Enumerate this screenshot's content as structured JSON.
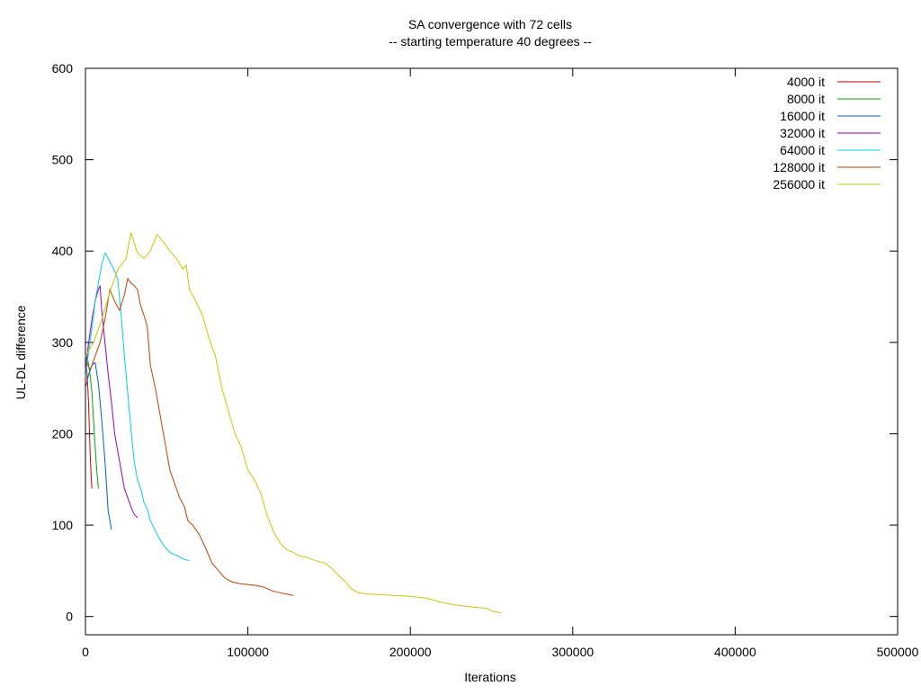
{
  "chart_data": {
    "type": "line",
    "title": "SA convergence with 72 cells",
    "subtitle": "-- starting temperature 40 degrees --",
    "xlabel": "Iterations",
    "ylabel": "UL-DL difference",
    "xlim": [
      0,
      500000
    ],
    "ylim": [
      0,
      600
    ],
    "xticks": [
      0,
      100000,
      200000,
      300000,
      400000,
      500000
    ],
    "yticks": [
      0,
      100,
      200,
      300,
      400,
      500,
      600
    ],
    "grid": false,
    "legend_position": "top-right",
    "series": [
      {
        "name": "4000 it",
        "color": "#cc0000",
        "points": [
          [
            0,
            255
          ],
          [
            500,
            280
          ],
          [
            1000,
            265
          ],
          [
            1500,
            250
          ],
          [
            2000,
            230
          ],
          [
            2500,
            200
          ],
          [
            3000,
            175
          ],
          [
            3500,
            155
          ],
          [
            4000,
            140
          ]
        ]
      },
      {
        "name": "8000 it",
        "color": "#00aa00",
        "points": [
          [
            0,
            270
          ],
          [
            1000,
            285
          ],
          [
            2000,
            275
          ],
          [
            3000,
            262
          ],
          [
            4000,
            245
          ],
          [
            5000,
            215
          ],
          [
            6000,
            185
          ],
          [
            7000,
            160
          ],
          [
            8000,
            140
          ]
        ]
      },
      {
        "name": "16000 it",
        "color": "#0060c0",
        "points": [
          [
            0,
            250
          ],
          [
            2000,
            265
          ],
          [
            4000,
            275
          ],
          [
            6000,
            278
          ],
          [
            8000,
            255
          ],
          [
            10000,
            215
          ],
          [
            12000,
            170
          ],
          [
            14000,
            115
          ],
          [
            16000,
            95
          ]
        ]
      },
      {
        "name": "32000 it",
        "color": "#9900cc",
        "points": [
          [
            0,
            270
          ],
          [
            2000,
            300
          ],
          [
            4000,
            325
          ],
          [
            6000,
            345
          ],
          [
            8000,
            358
          ],
          [
            9000,
            362
          ],
          [
            10000,
            335
          ],
          [
            12000,
            300
          ],
          [
            14000,
            265
          ],
          [
            16000,
            235
          ],
          [
            18000,
            200
          ],
          [
            20000,
            180
          ],
          [
            22000,
            160
          ],
          [
            24000,
            140
          ],
          [
            26000,
            130
          ],
          [
            28000,
            120
          ],
          [
            30000,
            112
          ],
          [
            32000,
            108
          ]
        ]
      },
      {
        "name": "64000 it",
        "color": "#00d0e0",
        "points": [
          [
            0,
            262
          ],
          [
            2000,
            290
          ],
          [
            4000,
            315
          ],
          [
            6000,
            345
          ],
          [
            8000,
            365
          ],
          [
            10000,
            385
          ],
          [
            12000,
            398
          ],
          [
            14000,
            392
          ],
          [
            16000,
            385
          ],
          [
            18000,
            378
          ],
          [
            20000,
            368
          ],
          [
            22000,
            330
          ],
          [
            24000,
            285
          ],
          [
            26000,
            245
          ],
          [
            28000,
            205
          ],
          [
            30000,
            170
          ],
          [
            32000,
            150
          ],
          [
            34000,
            140
          ],
          [
            36000,
            125
          ],
          [
            38000,
            118
          ],
          [
            40000,
            105
          ],
          [
            44000,
            90
          ],
          [
            48000,
            78
          ],
          [
            52000,
            70
          ],
          [
            56000,
            67
          ],
          [
            60000,
            63
          ],
          [
            64000,
            61
          ]
        ]
      },
      {
        "name": "128000 it",
        "color": "#c04000",
        "points": [
          [
            0,
            280
          ],
          [
            3000,
            270
          ],
          [
            6000,
            285
          ],
          [
            9000,
            300
          ],
          [
            12000,
            325
          ],
          [
            15000,
            358
          ],
          [
            18000,
            345
          ],
          [
            21000,
            335
          ],
          [
            24000,
            352
          ],
          [
            26000,
            370
          ],
          [
            28000,
            365
          ],
          [
            30000,
            362
          ],
          [
            32000,
            358
          ],
          [
            34000,
            340
          ],
          [
            36000,
            330
          ],
          [
            38000,
            318
          ],
          [
            40000,
            275
          ],
          [
            43000,
            250
          ],
          [
            46000,
            220
          ],
          [
            49000,
            190
          ],
          [
            52000,
            160
          ],
          [
            55000,
            145
          ],
          [
            58000,
            130
          ],
          [
            61000,
            120
          ],
          [
            63000,
            105
          ],
          [
            66000,
            100
          ],
          [
            70000,
            90
          ],
          [
            74000,
            75
          ],
          [
            78000,
            58
          ],
          [
            82000,
            50
          ],
          [
            86000,
            42
          ],
          [
            90000,
            38
          ],
          [
            95000,
            36
          ],
          [
            100000,
            35
          ],
          [
            105000,
            34
          ],
          [
            110000,
            32
          ],
          [
            115000,
            28
          ],
          [
            120000,
            26
          ],
          [
            125000,
            24
          ],
          [
            128000,
            23
          ]
        ]
      },
      {
        "name": "256000 it",
        "color": "#c8c800",
        "points": [
          [
            0,
            285
          ],
          [
            5000,
            300
          ],
          [
            10000,
            325
          ],
          [
            15000,
            355
          ],
          [
            20000,
            380
          ],
          [
            25000,
            392
          ],
          [
            28000,
            420
          ],
          [
            32000,
            398
          ],
          [
            36000,
            392
          ],
          [
            40000,
            400
          ],
          [
            44000,
            418
          ],
          [
            48000,
            410
          ],
          [
            52000,
            400
          ],
          [
            56000,
            392
          ],
          [
            60000,
            380
          ],
          [
            62000,
            385
          ],
          [
            64000,
            358
          ],
          [
            68000,
            345
          ],
          [
            72000,
            330
          ],
          [
            76000,
            305
          ],
          [
            80000,
            285
          ],
          [
            84000,
            250
          ],
          [
            88000,
            225
          ],
          [
            92000,
            200
          ],
          [
            96000,
            185
          ],
          [
            100000,
            160
          ],
          [
            104000,
            150
          ],
          [
            108000,
            135
          ],
          [
            112000,
            110
          ],
          [
            116000,
            92
          ],
          [
            120000,
            80
          ],
          [
            124000,
            73
          ],
          [
            128000,
            70
          ],
          [
            132000,
            66
          ],
          [
            136000,
            65
          ],
          [
            140000,
            62
          ],
          [
            144000,
            60
          ],
          [
            148000,
            58
          ],
          [
            152000,
            52
          ],
          [
            156000,
            45
          ],
          [
            160000,
            38
          ],
          [
            164000,
            30
          ],
          [
            168000,
            26
          ],
          [
            172000,
            25
          ],
          [
            180000,
            24
          ],
          [
            190000,
            23
          ],
          [
            200000,
            22
          ],
          [
            210000,
            20
          ],
          [
            220000,
            15
          ],
          [
            230000,
            12
          ],
          [
            240000,
            10
          ],
          [
            247000,
            9
          ],
          [
            250000,
            6
          ],
          [
            256000,
            4
          ]
        ]
      }
    ]
  }
}
